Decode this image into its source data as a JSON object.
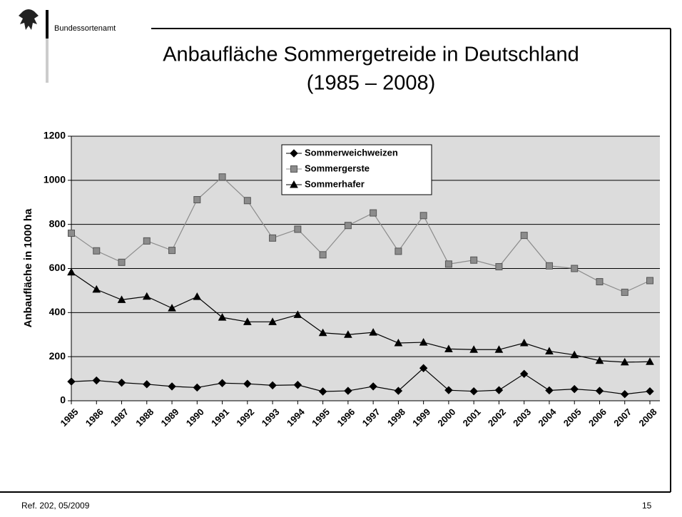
{
  "header": {
    "org": "Bundessortenamt"
  },
  "chart_data": {
    "type": "line",
    "title": "Anbaufläche Sommergetreide in Deutschland",
    "subtitle": "(1985 – 2008)",
    "y_label": "Anbaufläche in 1000 ha",
    "categories": [
      "1985",
      "1986",
      "1987",
      "1988",
      "1989",
      "1990",
      "1991",
      "1992",
      "1993",
      "1994",
      "1995",
      "1996",
      "1997",
      "1998",
      "1999",
      "2000",
      "2001",
      "2002",
      "2003",
      "2004",
      "2005",
      "2006",
      "2007",
      "2008"
    ],
    "series": [
      {
        "name": "Sommerweichweizen",
        "color": "#000000",
        "marker": "diamond",
        "values": [
          87,
          92,
          82,
          75,
          65,
          60,
          80,
          77,
          70,
          72,
          42,
          45,
          65,
          45,
          148,
          48,
          43,
          48,
          122,
          47,
          53,
          45,
          30,
          43
        ]
      },
      {
        "name": "Sommergerste",
        "color": "#8c8c8c",
        "marker": "square",
        "values": [
          760,
          680,
          628,
          725,
          682,
          912,
          1015,
          908,
          738,
          778,
          662,
          795,
          852,
          678,
          840,
          620,
          638,
          608,
          750,
          612,
          600,
          540,
          492,
          545
        ]
      },
      {
        "name": "Sommerhafer",
        "color": "#000000",
        "marker": "triangle",
        "values": [
          583,
          505,
          458,
          473,
          420,
          472,
          378,
          358,
          358,
          390,
          308,
          300,
          310,
          262,
          265,
          235,
          232,
          232,
          262,
          225,
          208,
          182,
          175,
          177
        ]
      }
    ],
    "ylim": [
      0,
      1200
    ],
    "yticks": [
      0,
      200,
      400,
      600,
      800,
      1000,
      1200
    ],
    "grid": true,
    "legend": "top"
  },
  "footer": {
    "ref": "Ref. 202, 05/2009",
    "page": "15"
  }
}
